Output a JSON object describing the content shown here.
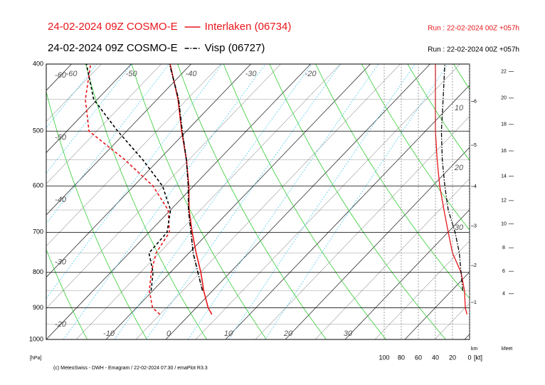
{
  "chart_data": {
    "type": "emagram",
    "footer": "(c) MeteoSwiss - DWH - Emagram / 22-02-2024  07:30 / emaPlot R3.3",
    "y_label": "[hPa]",
    "log_scale": true,
    "ylim": [
      1000,
      400
    ],
    "yticks": [
      400,
      500,
      600,
      700,
      800,
      900,
      1000
    ],
    "pressure": [
      920,
      900,
      850,
      800,
      750,
      700,
      650,
      600,
      550,
      500,
      450,
      400
    ],
    "series": [
      {
        "model": "24-02-2024 09Z COSMO-E",
        "name": "Interlaken (06734)",
        "run": "Run : 22-02-2024 00Z +057h",
        "color": "#e8161b",
        "dash": "solid",
        "temperature": [
          3.7,
          2.0,
          -1.5,
          -4.9,
          -8.8,
          -12.8,
          -16.9,
          -20.8,
          -25.4,
          -30.8,
          -36.5,
          -43.5
        ],
        "dewpoint": [
          -5.0,
          -7.3,
          -10.6,
          -13.2,
          -15.5,
          -16.6,
          -20.4,
          -26.8,
          -35.7,
          -46.3,
          -52.0,
          -56.8
        ],
        "wind_speed": [
          3,
          5,
          6,
          10,
          20,
          25,
          30,
          35,
          38,
          40,
          40,
          40
        ]
      },
      {
        "model": "24-02-2024 09Z COSMO-E",
        "name": "Visp (06727)",
        "run": "Run : 22-02-2024 00Z +057h",
        "color": "#000000",
        "dash": "dash-dot",
        "temperature": [
          null,
          null,
          -1.7,
          -5.4,
          -9.3,
          -13.0,
          -17.0,
          -20.9,
          -25.4,
          -30.7,
          -36.4,
          -43.6
        ],
        "dewpoint": [
          null,
          null,
          -10.3,
          -12.9,
          -16.7,
          -17.0,
          -20.0,
          -25.2,
          -32.7,
          -41.5,
          -50.6,
          -57.5
        ],
        "wind_speed": [
          null,
          null,
          8,
          10,
          12,
          17,
          25,
          29,
          32,
          33,
          31,
          29
        ]
      }
    ],
    "isotherm_labels_top": [
      -60,
      -50,
      -40,
      -30,
      -20
    ],
    "isotherm_labels_left": [
      -60,
      -50,
      -40,
      -30,
      -20
    ],
    "isotherm_labels_bottom": [
      -10,
      0,
      10,
      20,
      30
    ],
    "right_labels": [
      10,
      20,
      30
    ],
    "wind_xlim": [
      100,
      0
    ],
    "wind_ticks": [
      100,
      80,
      60,
      40,
      20,
      0
    ],
    "wind_unit": "[kt]",
    "km_label": "km",
    "km_ticks": [
      {
        "value": 884,
        "label": "1"
      },
      {
        "value": 782,
        "label": "2"
      },
      {
        "value": 686,
        "label": "3"
      },
      {
        "value": 601,
        "label": "4"
      },
      {
        "value": 524,
        "label": "5"
      },
      {
        "value": 453,
        "label": "6"
      }
    ],
    "kfeet_label": "kfeet",
    "kfeet_ticks": [
      {
        "value": 859,
        "label": "4"
      },
      {
        "value": 797,
        "label": "6"
      },
      {
        "value": 737,
        "label": "8"
      },
      {
        "value": 681,
        "label": "10"
      },
      {
        "value": 630,
        "label": "12"
      },
      {
        "value": 581,
        "label": "14"
      },
      {
        "value": 534,
        "label": "16"
      },
      {
        "value": 489,
        "label": "18"
      },
      {
        "value": 448,
        "label": "20"
      },
      {
        "value": 410,
        "label": "22"
      }
    ]
  }
}
